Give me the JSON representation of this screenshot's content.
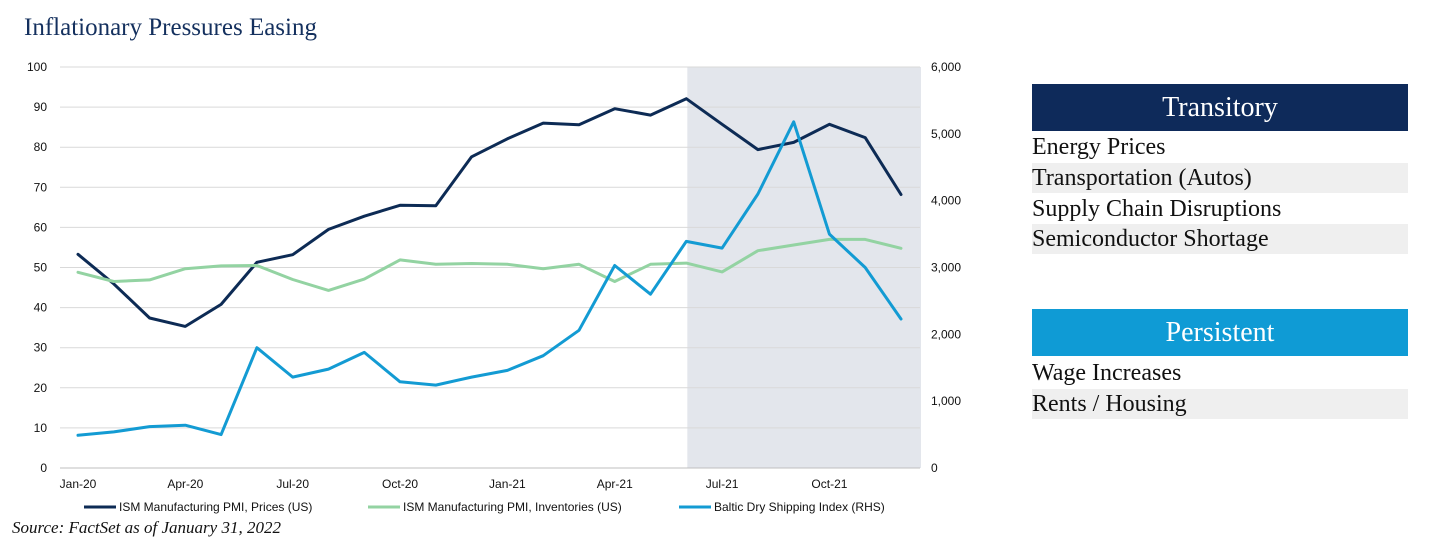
{
  "title": "Inflationary Pressures Easing",
  "source": "Source: FactSet as of January 31, 2022",
  "colors": {
    "prices": "#0d2b55",
    "inventories": "#93d3a2",
    "baltic": "#139bd3",
    "shade": "#e3e6ec",
    "transitory_header": "#0e2a5a",
    "persistent_header": "#0f9bd5"
  },
  "chart_data": {
    "type": "line",
    "title": "",
    "x": [
      "Jan-20",
      "Feb-20",
      "Mar-20",
      "Apr-20",
      "May-20",
      "Jun-20",
      "Jul-20",
      "Aug-20",
      "Sep-20",
      "Oct-20",
      "Nov-20",
      "Dec-20",
      "Jan-21",
      "Feb-21",
      "Mar-21",
      "Apr-21",
      "May-21",
      "Jun-21",
      "Jul-21",
      "Aug-21",
      "Sep-21",
      "Oct-21",
      "Nov-21",
      "Dec-21"
    ],
    "x_tick_labels": [
      "Jan-20",
      "Apr-20",
      "Jul-20",
      "Oct-20",
      "Jan-21",
      "Apr-21",
      "Jul-21",
      "Oct-21"
    ],
    "ylim_left": [
      0,
      100
    ],
    "y_ticks_left": [
      "0",
      "10",
      "20",
      "30",
      "40",
      "50",
      "60",
      "70",
      "80",
      "90",
      "100"
    ],
    "ylim_right": [
      0,
      6000
    ],
    "y_ticks_right": [
      "0",
      "1,000",
      "2,000",
      "3,000",
      "4,000",
      "5,000",
      "6,000"
    ],
    "grid": true,
    "shaded_region": {
      "from": "Jun-21",
      "to": "Dec-21"
    },
    "legend_position": "bottom",
    "series": [
      {
        "name": "ISM Manufacturing PMI, Prices (US)",
        "axis": "left",
        "values": [
          53.3,
          45.9,
          37.4,
          35.3,
          40.8,
          51.3,
          53.2,
          59.5,
          62.8,
          65.5,
          65.4,
          77.6,
          82.1,
          86.0,
          85.6,
          89.6,
          88.0,
          92.1,
          85.7,
          79.4,
          81.2,
          85.7,
          82.4,
          68.2
        ]
      },
      {
        "name": "ISM Manufacturing PMI, Inventories (US)",
        "axis": "left",
        "values": [
          48.8,
          46.5,
          46.9,
          49.7,
          50.4,
          50.5,
          47.0,
          44.3,
          47.1,
          51.9,
          50.8,
          51.0,
          50.8,
          49.7,
          50.8,
          46.5,
          50.8,
          51.1,
          48.9,
          54.2,
          55.6,
          57.0,
          57.0,
          54.8
        ]
      },
      {
        "name": "Baltic Dry Shipping Index (RHS)",
        "axis": "right",
        "values": [
          490,
          540,
          620,
          640,
          500,
          1800,
          1360,
          1480,
          1730,
          1290,
          1240,
          1360,
          1460,
          1680,
          2060,
          3030,
          2600,
          3390,
          3290,
          4100,
          5180,
          3500,
          3000,
          2230
        ]
      }
    ]
  },
  "transitory": {
    "header": "Transitory",
    "items": [
      "Energy Prices",
      "Transportation (Autos)",
      "Supply Chain Disruptions",
      "Semiconductor Shortage"
    ]
  },
  "persistent": {
    "header": "Persistent",
    "items": [
      "Wage Increases",
      "Rents / Housing"
    ]
  }
}
